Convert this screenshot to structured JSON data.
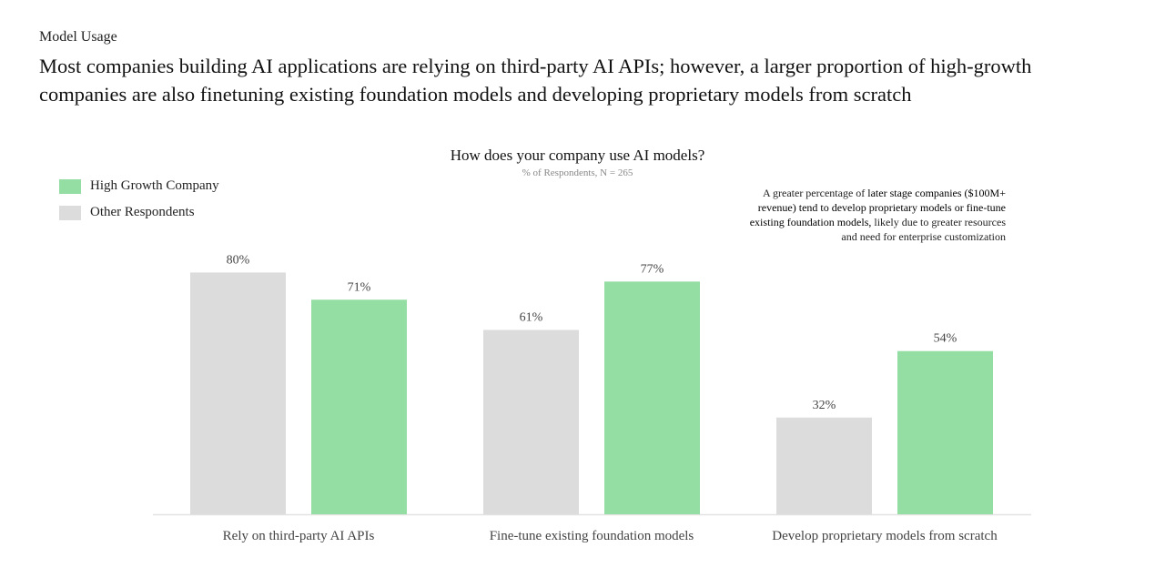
{
  "header": {
    "eyebrow": "Model Usage",
    "headline": "Most companies building AI applications are relying on third-party AI APIs; however, a larger proportion of high-growth companies are also finetuning existing foundation models and developing proprietary models from scratch"
  },
  "annotation": {
    "pre": "A greater percentage of ",
    "bold": "later stage companies ($100M+ revenue) tend to develop proprietary models or fine-tune existing foundation models,",
    "post": " likely due to greater resources and need for enterprise customization"
  },
  "chart_data": {
    "type": "bar",
    "title": "How does your company use AI models?",
    "subtitle": "% of Respondents, N = 265",
    "categories": [
      "Rely on third-party AI APIs",
      "Fine-tune existing foundation models",
      "Develop proprietary models from scratch"
    ],
    "series": [
      {
        "name": "Other Respondents",
        "color": "#dcdcdc",
        "values": [
          80,
          61,
          32
        ]
      },
      {
        "name": "High Growth Company",
        "color": "#94dea3",
        "values": [
          71,
          77,
          54
        ]
      }
    ],
    "legend_order": [
      "High Growth Company",
      "Other Respondents"
    ],
    "value_suffix": "%",
    "ylim": [
      0,
      100
    ],
    "xlabel": "",
    "ylabel": "",
    "grid": false,
    "legend_placement": "top-left"
  }
}
